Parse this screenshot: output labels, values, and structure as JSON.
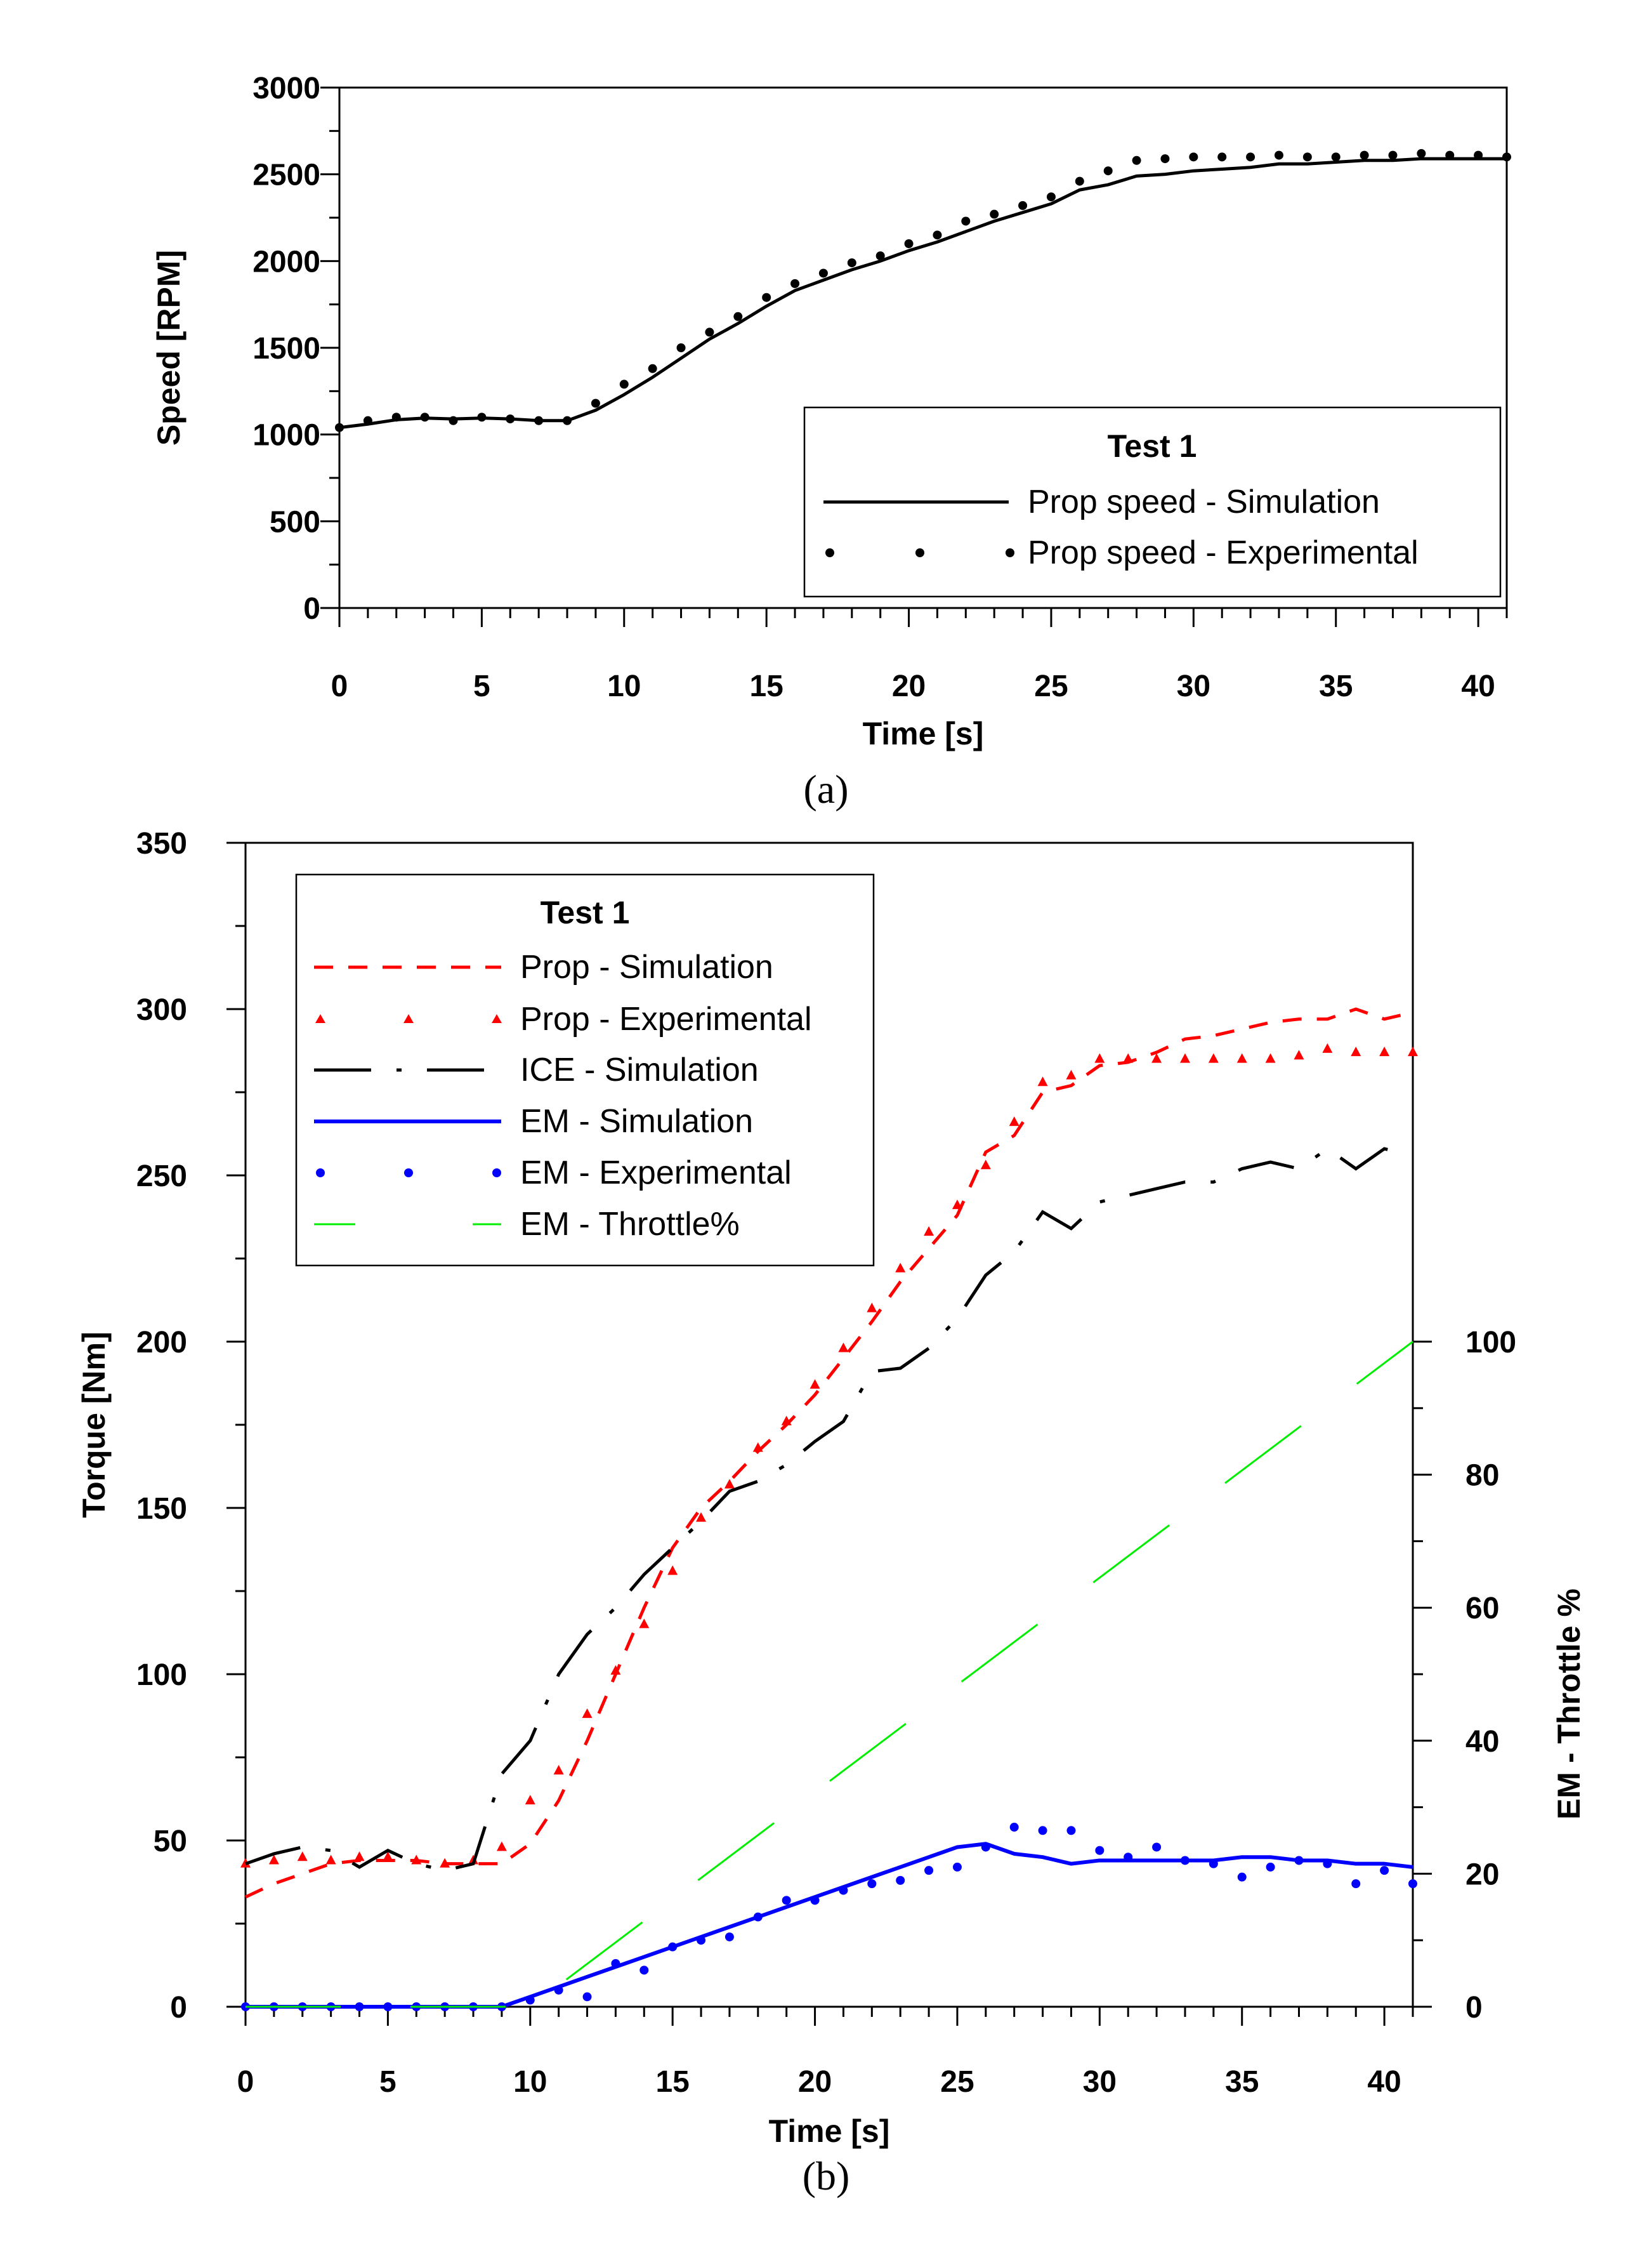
{
  "chart_data": [
    {
      "type": "line",
      "caption": "(a)",
      "xlabel": "Time [s]",
      "ylabel": "Speed [RPM]",
      "xlim": [
        0,
        41
      ],
      "ylim": [
        0,
        3000
      ],
      "xticks": [
        0,
        5,
        10,
        15,
        20,
        25,
        30,
        35,
        40
      ],
      "yticks": [
        0,
        500,
        1000,
        1500,
        2000,
        2500,
        3000
      ],
      "grid": false,
      "legend_position": "bottom-right",
      "legend_title": "Test 1",
      "series": [
        {
          "name": "Prop speed - Simulation",
          "style": "solid",
          "color": "#000000",
          "x": [
            0,
            1,
            2,
            3,
            4,
            5,
            6,
            7,
            8,
            9,
            10,
            11,
            12,
            13,
            14,
            15,
            16,
            17,
            18,
            19,
            20,
            21,
            22,
            23,
            24,
            25,
            26,
            27,
            28,
            29,
            30,
            31,
            32,
            33,
            34,
            35,
            36,
            37,
            38,
            39,
            40,
            41
          ],
          "y": [
            1040,
            1060,
            1085,
            1095,
            1090,
            1095,
            1090,
            1080,
            1080,
            1140,
            1230,
            1330,
            1440,
            1550,
            1640,
            1740,
            1830,
            1890,
            1950,
            2000,
            2060,
            2110,
            2170,
            2230,
            2280,
            2330,
            2410,
            2440,
            2490,
            2500,
            2520,
            2530,
            2540,
            2560,
            2560,
            2570,
            2580,
            2580,
            2590,
            2590,
            2590,
            2590
          ]
        },
        {
          "name": "Prop speed - Experimental",
          "style": "dots",
          "color": "#000000",
          "x": [
            0,
            1,
            2,
            3,
            4,
            5,
            6,
            7,
            8,
            9,
            10,
            11,
            12,
            13,
            14,
            15,
            16,
            17,
            18,
            19,
            20,
            21,
            22,
            23,
            24,
            25,
            26,
            27,
            28,
            29,
            30,
            31,
            32,
            33,
            34,
            35,
            36,
            37,
            38,
            39,
            40,
            41
          ],
          "y": [
            1040,
            1080,
            1100,
            1100,
            1080,
            1100,
            1090,
            1080,
            1080,
            1180,
            1290,
            1380,
            1500,
            1590,
            1680,
            1790,
            1870,
            1930,
            1990,
            2030,
            2100,
            2150,
            2230,
            2270,
            2320,
            2370,
            2460,
            2520,
            2580,
            2590,
            2600,
            2600,
            2600,
            2610,
            2600,
            2600,
            2610,
            2610,
            2620,
            2610,
            2610,
            2600
          ]
        }
      ]
    },
    {
      "type": "line",
      "caption": "(b)",
      "xlabel": "Time [s]",
      "ylabel": "Torque [Nm]",
      "y2label": "EM - Throttle %",
      "xlim": [
        0,
        41
      ],
      "ylim": [
        0,
        350
      ],
      "y2lim": [
        0,
        175
      ],
      "xticks": [
        0,
        5,
        10,
        15,
        20,
        25,
        30,
        35,
        40
      ],
      "yticks": [
        0,
        50,
        100,
        150,
        200,
        250,
        300,
        350
      ],
      "y2ticks": [
        0,
        20,
        40,
        60,
        80,
        100
      ],
      "grid": false,
      "legend_position": "top-left",
      "legend_title": "Test 1",
      "series": [
        {
          "name": "Prop - Simulation",
          "style": "dashed",
          "color": "#ff0000",
          "x": [
            0,
            1,
            2,
            3,
            4,
            5,
            6,
            7,
            8,
            9,
            10,
            11,
            12,
            13,
            14,
            15,
            16,
            17,
            18,
            19,
            20,
            21,
            22,
            23,
            24,
            25,
            26,
            27,
            28,
            29,
            30,
            31,
            32,
            33,
            34,
            35,
            36,
            37,
            38,
            39,
            40,
            41
          ],
          "y": [
            33,
            37,
            40,
            43,
            44,
            44,
            44,
            43,
            43,
            43,
            49,
            62,
            80,
            100,
            120,
            138,
            150,
            158,
            167,
            175,
            184,
            195,
            206,
            218,
            228,
            238,
            257,
            262,
            275,
            277,
            283,
            284,
            287,
            291,
            292,
            294,
            296,
            297,
            297,
            300,
            297,
            299
          ]
        },
        {
          "name": "Prop - Experimental",
          "style": "triangles",
          "color": "#ff0000",
          "x": [
            0,
            1,
            2,
            3,
            4,
            5,
            6,
            7,
            8,
            9,
            10,
            11,
            12,
            13,
            14,
            15,
            16,
            17,
            18,
            19,
            20,
            21,
            22,
            23,
            24,
            25,
            26,
            27,
            28,
            29,
            30,
            31,
            32,
            33,
            34,
            35,
            36,
            37,
            38,
            39,
            40,
            41
          ],
          "y": [
            43,
            44,
            45,
            44,
            45,
            45,
            44,
            43,
            44,
            48,
            62,
            71,
            88,
            101,
            115,
            131,
            147,
            157,
            168,
            176,
            187,
            198,
            210,
            222,
            233,
            241,
            253,
            266,
            278,
            280,
            285,
            285,
            285,
            285,
            285,
            285,
            285,
            286,
            288,
            287,
            287,
            287
          ]
        },
        {
          "name": "ICE - Simulation",
          "style": "dashdot",
          "color": "#000000",
          "x": [
            0,
            1,
            2,
            3,
            4,
            5,
            6,
            7,
            8,
            9,
            10,
            11,
            12,
            13,
            14,
            15,
            16,
            17,
            18,
            19,
            20,
            21,
            22,
            23,
            24,
            25,
            26,
            27,
            28,
            29,
            30,
            31,
            32,
            33,
            34,
            35,
            36,
            37,
            38,
            39,
            40,
            41
          ],
          "y": [
            43,
            46,
            48,
            47,
            42,
            47,
            43,
            41,
            43,
            70,
            80,
            100,
            112,
            120,
            130,
            138,
            146,
            155,
            158,
            163,
            170,
            176,
            191,
            192,
            198,
            207,
            220,
            227,
            239,
            234,
            242,
            244,
            246,
            248,
            248,
            252,
            254,
            252,
            258,
            252,
            258,
            256
          ]
        },
        {
          "name": "EM - Simulation",
          "style": "solid",
          "color": "#0000ff",
          "x": [
            0,
            1,
            2,
            3,
            4,
            5,
            6,
            7,
            8,
            9,
            10,
            11,
            12,
            13,
            14,
            15,
            16,
            17,
            18,
            19,
            20,
            21,
            22,
            23,
            24,
            25,
            26,
            27,
            28,
            29,
            30,
            31,
            32,
            33,
            34,
            35,
            36,
            37,
            38,
            39,
            40,
            41
          ],
          "y": [
            0,
            0,
            0,
            0,
            0,
            0,
            0,
            0,
            0,
            0,
            3,
            6,
            9,
            12,
            15,
            18,
            21,
            24,
            27,
            30,
            33,
            36,
            39,
            42,
            45,
            48,
            49,
            46,
            45,
            43,
            44,
            44,
            44,
            44,
            44,
            45,
            45,
            44,
            44,
            43,
            43,
            42
          ]
        },
        {
          "name": "EM - Experimental",
          "style": "dots",
          "color": "#0000ff",
          "x": [
            0,
            1,
            2,
            3,
            4,
            5,
            6,
            7,
            8,
            9,
            10,
            11,
            12,
            13,
            14,
            15,
            16,
            17,
            18,
            19,
            20,
            21,
            22,
            23,
            24,
            25,
            26,
            27,
            28,
            29,
            30,
            31,
            32,
            33,
            34,
            35,
            36,
            37,
            38,
            39,
            40,
            41
          ],
          "y": [
            0,
            0,
            0,
            0,
            0,
            0,
            0,
            0,
            0,
            0,
            2,
            5,
            3,
            13,
            11,
            18,
            20,
            21,
            27,
            32,
            32,
            35,
            37,
            38,
            41,
            42,
            48,
            54,
            53,
            53,
            47,
            45,
            48,
            44,
            43,
            39,
            42,
            44,
            43,
            37,
            41,
            37
          ]
        },
        {
          "name": "EM - Throttle%",
          "style": "longdash",
          "color": "#00ee00",
          "axis": "right",
          "x": [
            0,
            9,
            10,
            41
          ],
          "y": [
            0,
            0,
            0,
            100
          ]
        }
      ]
    }
  ]
}
